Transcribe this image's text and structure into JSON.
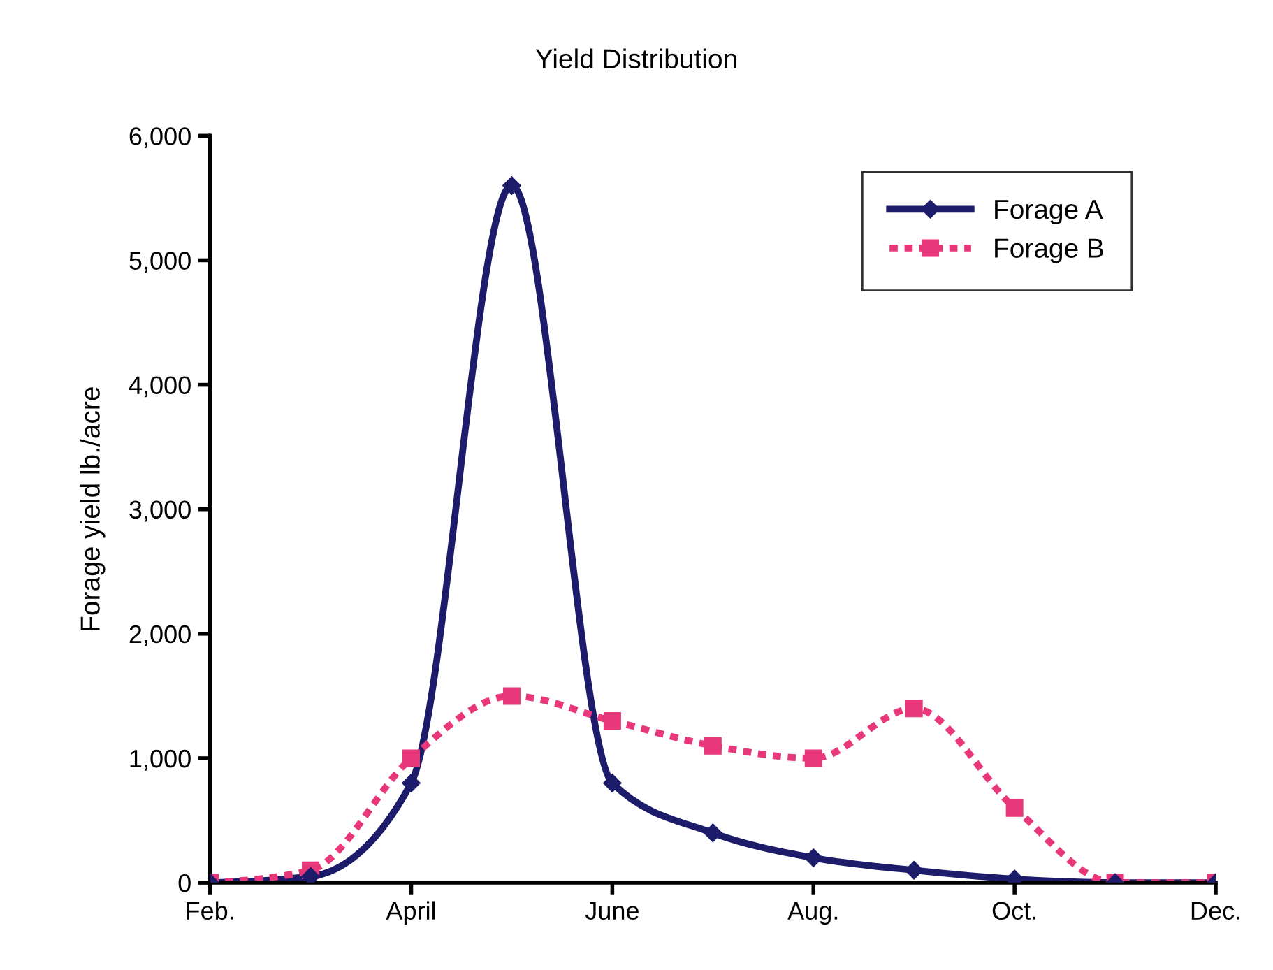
{
  "chart_data": {
    "type": "line",
    "title": "Yield Distribution",
    "ylabel": "Forage yield lb./acre",
    "categories": [
      "Feb.",
      null,
      "April",
      null,
      "June",
      null,
      "Aug.",
      null,
      "Oct.",
      null,
      "Dec."
    ],
    "series": [
      {
        "name": "Forage A",
        "color": "#1c1c6b",
        "marker": "diamond",
        "line_style": "solid",
        "values": [
          0,
          50,
          800,
          5600,
          800,
          400,
          200,
          100,
          30,
          0,
          0
        ]
      },
      {
        "name": "Forage B",
        "color": "#e8377a",
        "marker": "square",
        "line_style": "dotted",
        "values": [
          0,
          100,
          1000,
          1500,
          1300,
          1100,
          1000,
          1400,
          600,
          0,
          0
        ]
      }
    ],
    "ylim": [
      0,
      6000
    ],
    "yticks": [
      0,
      {
        "value": 1000,
        "label": "1,000"
      },
      {
        "value": 2000,
        "label": "2,000"
      },
      {
        "value": 3000,
        "label": "3,000"
      },
      {
        "value": 4000,
        "label": "4,000"
      },
      {
        "value": 5000,
        "label": "5,000"
      },
      {
        "value": 6000,
        "label": "6,000"
      }
    ],
    "grid": false,
    "legend": "top right"
  }
}
